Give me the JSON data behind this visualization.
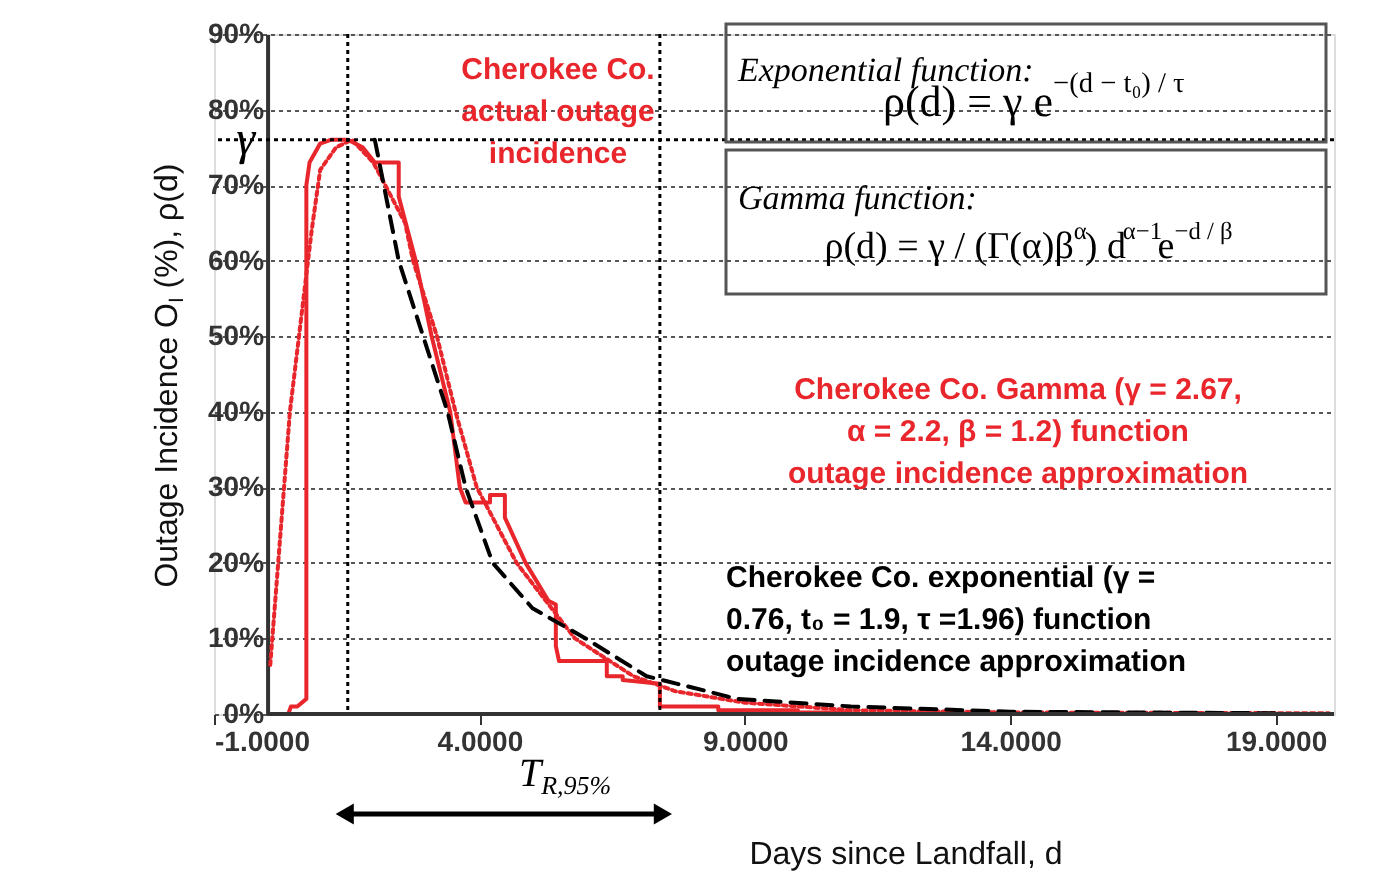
{
  "chart_data": {
    "type": "line",
    "xlabel": "Days since Landfall, d",
    "ylabel": "Outage Incidence O$_{I}$ (%), ρ(d)",
    "xlim": [
      -1,
      20.1
    ],
    "ylim": [
      0,
      90
    ],
    "xticks": [
      {
        "value": -1,
        "label": "-1.0000"
      },
      {
        "value": 4,
        "label": "4.0000"
      },
      {
        "value": 9,
        "label": "9.0000"
      },
      {
        "value": 14,
        "label": "14.0000"
      },
      {
        "value": 19,
        "label": "19.0000"
      }
    ],
    "yticks": [
      {
        "value": 0,
        "label": "0%"
      },
      {
        "value": 10,
        "label": "10%"
      },
      {
        "value": 20,
        "label": "20%"
      },
      {
        "value": 30,
        "label": "30%"
      },
      {
        "value": 40,
        "label": "40%"
      },
      {
        "value": 50,
        "label": "50%"
      },
      {
        "value": 60,
        "label": "60%"
      },
      {
        "value": 70,
        "label": "70%"
      },
      {
        "value": 80,
        "label": "80%"
      },
      {
        "value": 90,
        "label": "90%"
      }
    ],
    "grid": "y",
    "marker": "none",
    "series": [
      {
        "color": "#e8262b",
        "line_style": "solid",
        "x": [
          0.4,
          0.45,
          0.57,
          0.74,
          0.74,
          0.8,
          1.0,
          1.2,
          1.52,
          1.8,
          2.03,
          2.48,
          2.48,
          2.8,
          3.1,
          3.45,
          3.63,
          3.74,
          4.2,
          4.2,
          4.48,
          4.48,
          4.87,
          5.3,
          5.44,
          5.44,
          5.5,
          6.4,
          6.4,
          6.7,
          6.7,
          7.4,
          7.4,
          8.5,
          8.5,
          10,
          10,
          11,
          11,
          20
        ],
        "values": [
          0,
          1,
          1,
          2,
          70,
          73,
          75.5,
          76,
          76,
          75,
          73,
          73,
          68.5,
          60,
          50,
          40,
          30,
          28,
          28,
          29,
          29,
          26,
          20,
          15,
          14.5,
          9,
          7,
          7,
          5,
          5,
          4.5,
          4,
          1,
          1,
          0.5,
          0.5,
          0.2,
          0.2,
          0,
          0
        ]
      },
      {
        "color": "#e8262b",
        "line_style": "dotted",
        "x": [
          0.06,
          0.43,
          0.84,
          1.0,
          1.3,
          1.6,
          2.0,
          2.6,
          2.75,
          3.2,
          3.55,
          3.95,
          4.7,
          5.8,
          6.9,
          7.7,
          9,
          11,
          14,
          20
        ],
        "values": [
          6.5,
          40,
          64,
          72,
          75,
          76,
          73,
          65,
          60,
          50,
          40,
          30,
          20,
          10,
          5,
          3,
          1.5,
          0.5,
          0.2,
          0.1
        ]
      },
      {
        "color": "#000000",
        "line_style": "dashed",
        "x": [
          2.03,
          2.48,
          3.4,
          3.74,
          4.25,
          5.0,
          6.0,
          7.15,
          8.3,
          8.85,
          11,
          14,
          19
        ],
        "values": [
          76,
          60,
          40,
          30,
          20,
          14,
          10,
          5,
          3,
          2,
          1,
          0.3,
          0.1
        ]
      }
    ],
    "ref_lines": [
      {
        "axis": "y",
        "value": 76,
        "label": "γ",
        "color": "#000000",
        "line_style": "dotted"
      },
      {
        "axis": "x",
        "value": 1.52,
        "color": "#000000",
        "line_style": "dotted"
      },
      {
        "axis": "x",
        "value": 7.4,
        "color": "#000000",
        "line_style": "dotted"
      }
    ],
    "annotations": [
      "Cherokee Co. actual outage incidence",
      "Cherokee Co. Gamma (γ = 2.67, α = 2.2, β = 1.2) function outage incidence approximation",
      "Cherokee Co. exponential (γ = 0.76, t₀ = 1.9, τ =1.96) function outage incidence approximation",
      "Exponential function:",
      "ρ(d) = γ e$^{−(d − t₀) / τ}$",
      "Gamma function:",
      "ρ(d) = γ / (Γ(α)β$^{α}$) d$^{α−1}$e$^{−d / β}$",
      "T$_{R,95%}$"
    ]
  }
}
